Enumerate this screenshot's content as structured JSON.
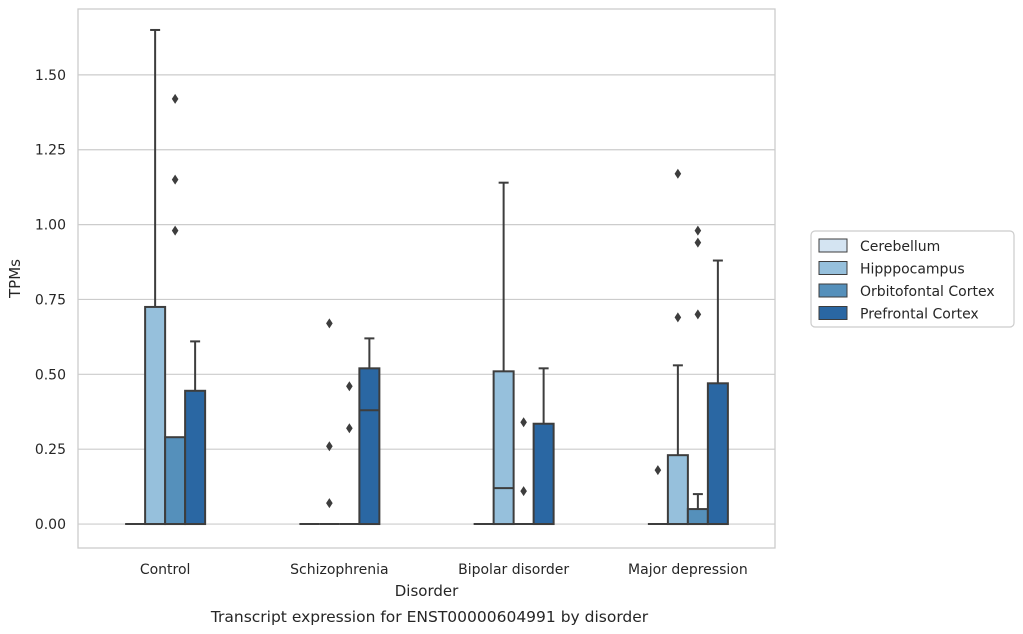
{
  "chart_data": {
    "type": "box",
    "caption": "Transcript expression for ENST00000604991 by disorder",
    "xlabel": "Disorder",
    "ylabel": "TPMs",
    "ylim": [
      -0.08,
      1.72
    ],
    "yticks": [
      0.0,
      0.25,
      0.5,
      0.75,
      1.0,
      1.25,
      1.5
    ],
    "ytick_labels": [
      "0.00",
      "0.25",
      "0.50",
      "0.75",
      "1.00",
      "1.25",
      "1.50"
    ],
    "grid": true,
    "legend_position": "right",
    "categories": [
      "Control",
      "Schizophrenia",
      "Bipolar disorder",
      "Major depression"
    ],
    "series": [
      {
        "name": "Cerebellum",
        "color": "#d4e4f2",
        "boxes": [
          {
            "q1": 0,
            "median": 0,
            "q3": 0,
            "whisker_low": 0,
            "whisker_high": 0,
            "outliers": []
          },
          {
            "q1": 0,
            "median": 0,
            "q3": 0,
            "whisker_low": 0,
            "whisker_high": 0,
            "outliers": []
          },
          {
            "q1": 0,
            "median": 0,
            "q3": 0,
            "whisker_low": 0,
            "whisker_high": 0,
            "outliers": []
          },
          {
            "q1": 0,
            "median": 0,
            "q3": 0,
            "whisker_low": 0,
            "whisker_high": 0,
            "outliers": [
              0.18
            ]
          }
        ]
      },
      {
        "name": "Hipppocampus",
        "color": "#96c0dc",
        "boxes": [
          {
            "q1": 0,
            "median": 0,
            "q3": 0.725,
            "whisker_low": 0,
            "whisker_high": 1.65,
            "outliers": []
          },
          {
            "q1": 0,
            "median": 0,
            "q3": 0,
            "whisker_low": 0,
            "whisker_high": 0,
            "outliers": [
              0.07,
              0.26,
              0.67
            ]
          },
          {
            "q1": 0,
            "median": 0.12,
            "q3": 0.51,
            "whisker_low": 0,
            "whisker_high": 1.14,
            "outliers": []
          },
          {
            "q1": 0,
            "median": 0,
            "q3": 0.23,
            "whisker_low": 0,
            "whisker_high": 0.53,
            "outliers": [
              0.69,
              1.17
            ]
          }
        ]
      },
      {
        "name": "Orbitofontal Cortex",
        "color": "#5590bb",
        "boxes": [
          {
            "q1": 0,
            "median": 0,
            "q3": 0.29,
            "whisker_low": 0,
            "whisker_high": 0.29,
            "outliers": [
              0.98,
              1.15,
              1.42
            ]
          },
          {
            "q1": 0,
            "median": 0,
            "q3": 0,
            "whisker_low": 0,
            "whisker_high": 0,
            "outliers": [
              0.32,
              0.46
            ]
          },
          {
            "q1": 0,
            "median": 0,
            "q3": 0,
            "whisker_low": 0,
            "whisker_high": 0,
            "outliers": [
              0.11,
              0.34
            ]
          },
          {
            "q1": 0,
            "median": 0,
            "q3": 0.05,
            "whisker_low": 0,
            "whisker_high": 0.1,
            "outliers": [
              0.7,
              0.94,
              0.98
            ]
          }
        ]
      },
      {
        "name": "Prefrontal Cortex",
        "color": "#2a67a3",
        "boxes": [
          {
            "q1": 0,
            "median": 0,
            "q3": 0.445,
            "whisker_low": 0,
            "whisker_high": 0.61,
            "outliers": []
          },
          {
            "q1": 0,
            "median": 0.38,
            "q3": 0.52,
            "whisker_low": 0,
            "whisker_high": 0.62,
            "outliers": []
          },
          {
            "q1": 0,
            "median": 0,
            "q3": 0.335,
            "whisker_low": 0,
            "whisker_high": 0.52,
            "outliers": []
          },
          {
            "q1": 0,
            "median": 0,
            "q3": 0.47,
            "whisker_low": 0,
            "whisker_high": 0.88,
            "outliers": []
          }
        ]
      }
    ]
  }
}
